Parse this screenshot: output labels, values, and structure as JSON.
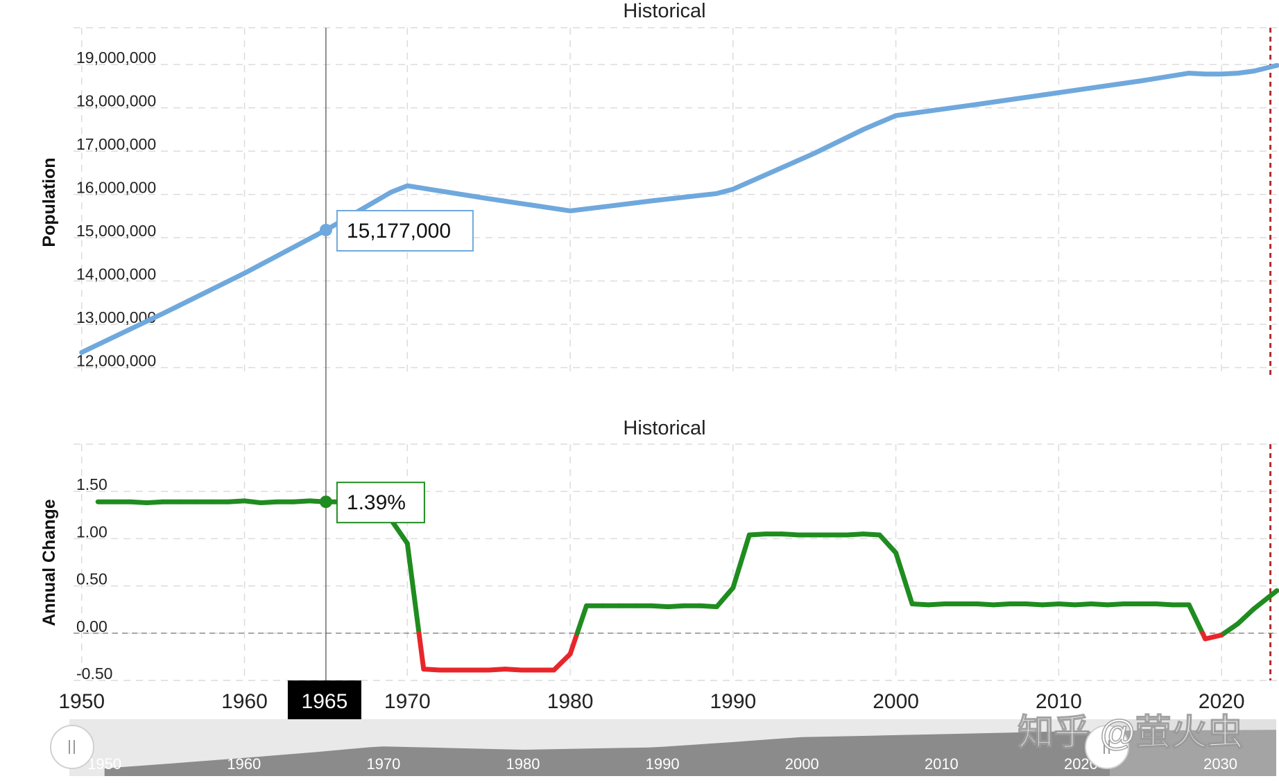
{
  "chart_data": [
    {
      "type": "line",
      "title": "Historical",
      "ylabel": "Population",
      "xlim": [
        1949.5,
        2023.4
      ],
      "ylim": [
        11800000,
        19850000
      ],
      "y_ticks": [
        12000000,
        13000000,
        14000000,
        15000000,
        16000000,
        17000000,
        18000000,
        19000000
      ],
      "y_tick_labels": [
        "12,000,000",
        "13,000,000",
        "14,000,000",
        "15,000,000",
        "16,000,000",
        "17,000,000",
        "18,000,000",
        "19,000,000"
      ],
      "grid": true,
      "series": [
        {
          "color": "#6fa8dc",
          "x": [
            1950,
            1955,
            1960,
            1965,
            1969,
            1970,
            1975,
            1980,
            1985,
            1989,
            1990,
            1995,
            1998,
            2000,
            2005,
            2010,
            2015,
            2018,
            2019,
            2020,
            2021,
            2022,
            2023.4
          ],
          "values": [
            12350000,
            13250000,
            14180000,
            15177000,
            16050000,
            16200000,
            15900000,
            15620000,
            15850000,
            16020000,
            16120000,
            16950000,
            17500000,
            17820000,
            18080000,
            18350000,
            18620000,
            18800000,
            18780000,
            18780000,
            18800000,
            18850000,
            18980000
          ]
        }
      ],
      "tooltip": {
        "x": 1965,
        "label": "15,177,000"
      },
      "forecast_line_x": 2023
    },
    {
      "type": "line",
      "title": "Historical",
      "ylabel": "Annual Change",
      "xlim": [
        1949.5,
        2023.4
      ],
      "ylim": [
        -0.5,
        2.0
      ],
      "y_ticks": [
        -0.5,
        0,
        0.5,
        1.0,
        1.5
      ],
      "y_tick_labels": [
        "-0.50",
        "0.00",
        "0.50",
        "1.00",
        "1.50"
      ],
      "grid": true,
      "positive_color": "#1f8c1f",
      "negative_color": "#e8262a",
      "series": [
        {
          "x": [
            1951,
            1952,
            1953,
            1954,
            1955,
            1956,
            1957,
            1958,
            1959,
            1960,
            1961,
            1962,
            1963,
            1964,
            1965,
            1966,
            1967,
            1968,
            1969,
            1970,
            1971,
            1972,
            1973,
            1974,
            1975,
            1976,
            1977,
            1978,
            1979,
            1980,
            1981,
            1982,
            1983,
            1984,
            1985,
            1986,
            1987,
            1988,
            1989,
            1990,
            1991,
            1992,
            1993,
            1994,
            1995,
            1996,
            1997,
            1998,
            1999,
            2000,
            2001,
            2002,
            2003,
            2004,
            2005,
            2006,
            2007,
            2008,
            2009,
            2010,
            2011,
            2012,
            2013,
            2014,
            2015,
            2016,
            2017,
            2018,
            2019,
            2020,
            2021,
            2022,
            2023.4
          ],
          "values": [
            1.39,
            1.39,
            1.39,
            1.38,
            1.39,
            1.39,
            1.39,
            1.39,
            1.39,
            1.4,
            1.38,
            1.39,
            1.39,
            1.4,
            1.39,
            1.39,
            1.39,
            1.39,
            1.2,
            0.95,
            -0.38,
            -0.39,
            -0.39,
            -0.39,
            -0.39,
            -0.38,
            -0.39,
            -0.39,
            -0.39,
            -0.22,
            0.29,
            0.29,
            0.29,
            0.29,
            0.29,
            0.28,
            0.29,
            0.29,
            0.28,
            0.48,
            1.04,
            1.05,
            1.05,
            1.04,
            1.04,
            1.04,
            1.04,
            1.05,
            1.04,
            0.85,
            0.31,
            0.3,
            0.31,
            0.31,
            0.31,
            0.3,
            0.31,
            0.31,
            0.3,
            0.31,
            0.3,
            0.31,
            0.3,
            0.31,
            0.31,
            0.31,
            0.3,
            0.3,
            -0.06,
            -0.02,
            0.1,
            0.26,
            0.45
          ]
        }
      ],
      "tooltip": {
        "x": 1965,
        "label": "1.39%"
      },
      "forecast_line_x": 2023
    }
  ],
  "x_axis": {
    "ticks": [
      1950,
      1960,
      1970,
      1980,
      1990,
      2000,
      2010,
      2020
    ],
    "labels": [
      "1950",
      "1960",
      "1970",
      "1980",
      "1990",
      "2000",
      "2010",
      "2020"
    ],
    "crosshair_x": 1965,
    "crosshair_label": "1965"
  },
  "navigator": {
    "labels": [
      "1950",
      "1960",
      "1970",
      "1980",
      "1990",
      "2000",
      "2010",
      "2020",
      "2030"
    ],
    "handle_icon": "grip-lines-icon"
  },
  "watermark": "知乎 @萤火虫"
}
